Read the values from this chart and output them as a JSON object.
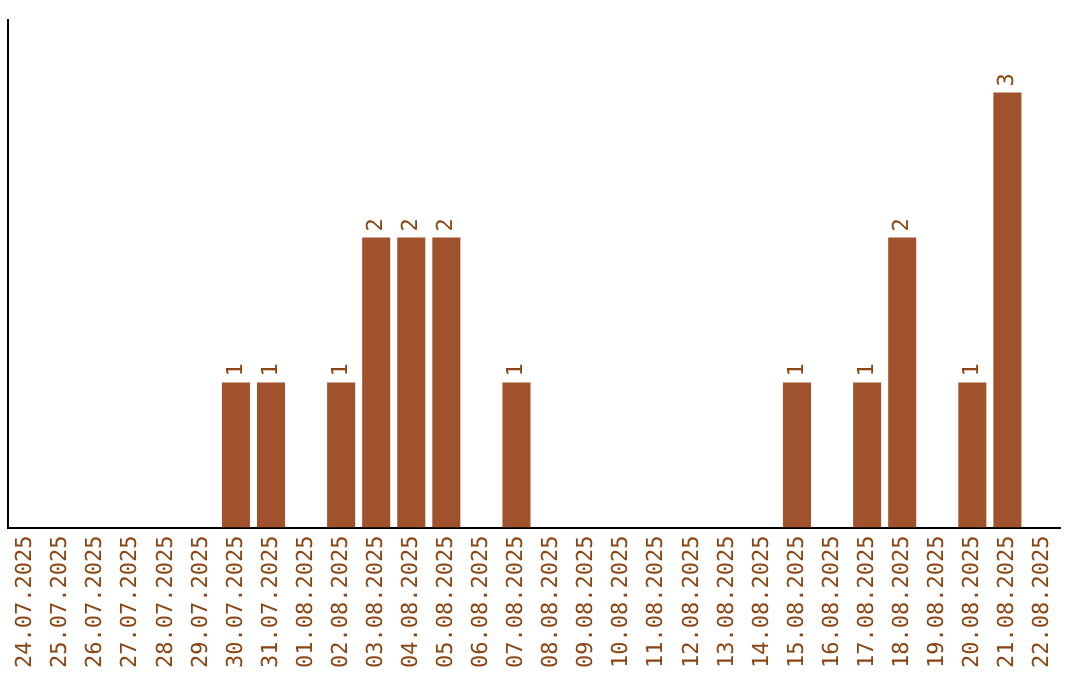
{
  "chart_data": {
    "type": "bar",
    "categories": [
      "24.07.2025",
      "25.07.2025",
      "26.07.2025",
      "27.07.2025",
      "28.07.2025",
      "29.07.2025",
      "30.07.2025",
      "31.07.2025",
      "01.08.2025",
      "02.08.2025",
      "03.08.2025",
      "04.08.2025",
      "05.08.2025",
      "06.08.2025",
      "07.08.2025",
      "08.08.2025",
      "09.08.2025",
      "10.08.2025",
      "11.08.2025",
      "12.08.2025",
      "13.08.2025",
      "14.08.2025",
      "15.08.2025",
      "16.08.2025",
      "17.08.2025",
      "18.08.2025",
      "19.08.2025",
      "20.08.2025",
      "21.08.2025",
      "22.08.2025"
    ],
    "values": [
      0,
      0,
      0,
      0,
      0,
      0,
      1,
      1,
      0,
      1,
      2,
      2,
      2,
      0,
      1,
      0,
      0,
      0,
      0,
      0,
      0,
      0,
      1,
      0,
      1,
      2,
      0,
      1,
      3,
      0
    ],
    "value_labels": [
      null,
      null,
      null,
      null,
      null,
      null,
      "1",
      "1",
      null,
      "1",
      "2",
      "2",
      "2",
      null,
      "1",
      null,
      null,
      null,
      null,
      null,
      null,
      null,
      "1",
      null,
      "1",
      "2",
      null,
      "1",
      "3",
      null
    ],
    "color": "#a0522d",
    "grid": false,
    "legend": false,
    "tick_labels": "x"
  }
}
